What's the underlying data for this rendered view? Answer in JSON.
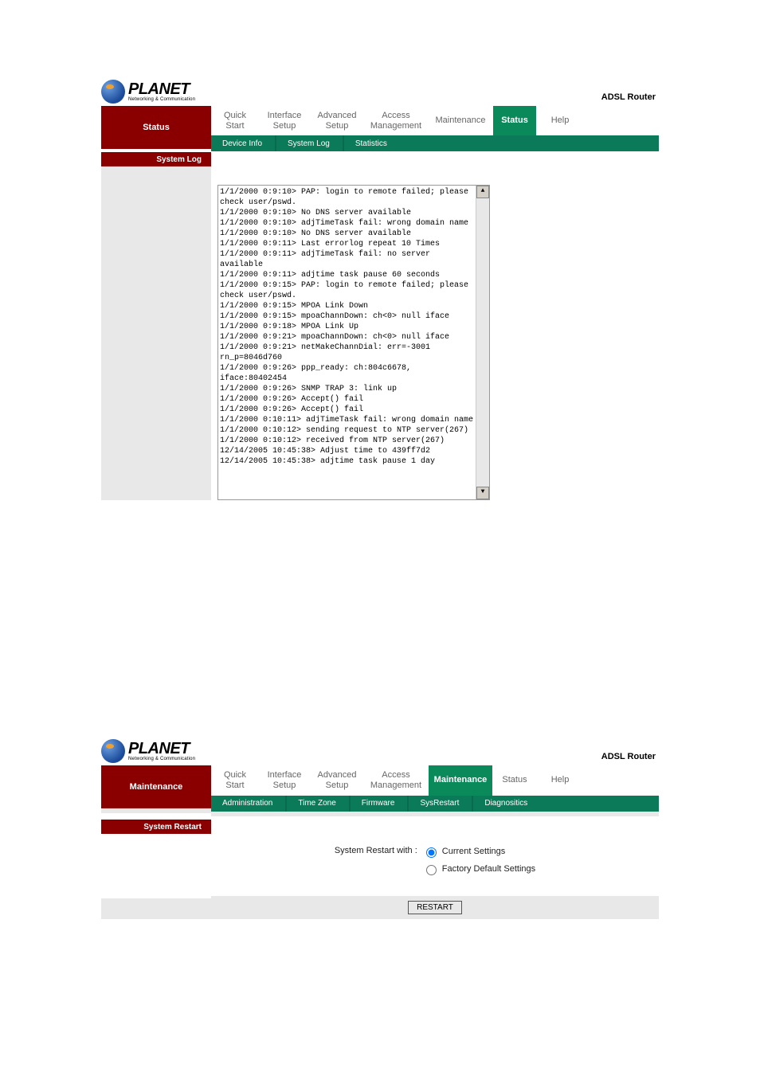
{
  "brand": {
    "name": "PLANET",
    "tagline": "Networking & Communication",
    "product": "ADSL Router"
  },
  "top_tabs": {
    "quick_start": "Quick\nStart",
    "interface_setup": "Interface\nSetup",
    "advanced_setup": "Advanced\nSetup",
    "access_management": "Access\nManagement",
    "maintenance": "Maintenance",
    "status": "Status",
    "help": "Help"
  },
  "screenshot1": {
    "sidebar_title": "Status",
    "sidebar_item": "System Log",
    "subtabs": {
      "device_info": "Device Info",
      "system_log": "System Log",
      "statistics": "Statistics"
    },
    "tab_widths": {
      "quick_start": 58,
      "interface_setup": 64,
      "advanced_setup": 66,
      "access_management": 80,
      "maintenance": 80,
      "status": 54,
      "help": 58
    },
    "log_lines": [
      "1/1/2000 0:9:10> PAP: login to remote failed; please check user/pswd.",
      "1/1/2000 0:9:10> No DNS server available",
      "1/1/2000 0:9:10> adjTimeTask fail: wrong domain name",
      "1/1/2000 0:9:10> No DNS server available",
      "1/1/2000 0:9:11> Last errorlog repeat 10 Times",
      "1/1/2000 0:9:11> adjTimeTask fail: no server available",
      "1/1/2000 0:9:11> adjtime task pause 60 seconds",
      "1/1/2000 0:9:15> PAP: login to remote failed; please check user/pswd.",
      "1/1/2000 0:9:15> MPOA Link Down",
      "1/1/2000 0:9:15> mpoaChannDown: ch<0> null iface",
      "1/1/2000 0:9:18> MPOA Link Up",
      "1/1/2000 0:9:21> mpoaChannDown: ch<0> null iface",
      "1/1/2000 0:9:21> netMakeChannDial: err=-3001 rn_p=8046d760",
      "1/1/2000 0:9:26> ppp_ready: ch:804c6678, iface:80402454",
      "1/1/2000 0:9:26> SNMP TRAP 3: link up",
      "1/1/2000 0:9:26> Accept() fail",
      "1/1/2000 0:9:26> Accept() fail",
      "1/1/2000 0:10:11> adjTimeTask fail: wrong domain name",
      "1/1/2000 0:10:12> sending request to NTP server(267)",
      "1/1/2000 0:10:12> received from NTP server(267)",
      "12/14/2005 10:45:38> Adjust time to 439ff7d2",
      "12/14/2005 10:45:38> adjtime task pause 1 day"
    ]
  },
  "screenshot2": {
    "sidebar_title": "Maintenance",
    "sidebar_item": "System Restart",
    "subtabs": {
      "administration": "Administration",
      "time_zone": "Time Zone",
      "firmware": "Firmware",
      "sysrestart": "SysRestart",
      "diagnostics": "Diagnositics"
    },
    "tab_widths": {
      "quick_start": 58,
      "interface_setup": 64,
      "advanced_setup": 66,
      "access_management": 80,
      "maintenance": 80,
      "status": 54,
      "help": 58
    },
    "restart": {
      "label": "System Restart with :",
      "opt1": "Current Settings",
      "opt2": "Factory Default Settings",
      "button": "RESTART"
    }
  },
  "colors": {
    "tab_active": "#0a8a5a",
    "sidebar": "#8a0000",
    "subtab_bg": "#0b7a58"
  }
}
